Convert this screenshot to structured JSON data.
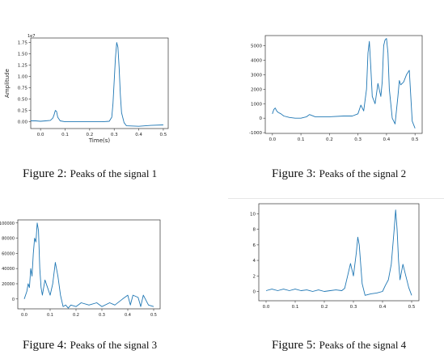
{
  "figures": [
    {
      "id": "fig2",
      "caption_label": "Figure 2:",
      "caption_text": "Peaks of the signal 1",
      "chart_data": {
        "type": "line",
        "title": "",
        "xlabel": "Time(s)",
        "ylabel": "Amplitude",
        "offset_text": "1e7",
        "xlim": [
          -0.04,
          0.52
        ],
        "ylim": [
          -0.15,
          1.85
        ],
        "xticks": [
          0.0,
          0.1,
          0.2,
          0.3,
          0.4,
          0.5
        ],
        "xtick_labels": [
          "0.0",
          "0.1",
          "0.2",
          "0.3",
          "0.4",
          "0.5"
        ],
        "yticks": [
          0.0,
          0.25,
          0.5,
          0.75,
          1.0,
          1.25,
          1.5,
          1.75
        ],
        "ytick_labels": [
          "0.00",
          "0.25",
          "0.50",
          "0.75",
          "1.00",
          "1.25",
          "1.50",
          "1.75"
        ],
        "series": [
          {
            "x": [
              -0.04,
              -0.02,
              0.0,
              0.02,
              0.04,
              0.05,
              0.055,
              0.06,
              0.065,
              0.07,
              0.08,
              0.1,
              0.15,
              0.2,
              0.25,
              0.28,
              0.29,
              0.295,
              0.3,
              0.305,
              0.31,
              0.315,
              0.32,
              0.325,
              0.33,
              0.34,
              0.35,
              0.4,
              0.45,
              0.5
            ],
            "y": [
              0.02,
              0.02,
              0.01,
              0.02,
              0.03,
              0.08,
              0.15,
              0.25,
              0.23,
              0.1,
              0.02,
              0.0,
              0.0,
              0.0,
              0.0,
              0.01,
              0.1,
              0.4,
              0.9,
              1.4,
              1.75,
              1.65,
              1.2,
              0.6,
              0.2,
              -0.02,
              -0.09,
              -0.1,
              -0.08,
              -0.07
            ]
          }
        ],
        "color": "#1f77b4"
      }
    },
    {
      "id": "fig3",
      "caption_label": "Figure 3:",
      "caption_text": "Peaks of the signal 2",
      "chart_data": {
        "type": "line",
        "title": "",
        "xlabel": "",
        "ylabel": "",
        "xlim": [
          -0.025,
          0.525
        ],
        "ylim": [
          -1050,
          5700
        ],
        "xticks": [
          0.0,
          0.1,
          0.2,
          0.3,
          0.4,
          0.5
        ],
        "xtick_labels": [
          "0.0",
          "0.1",
          "0.2",
          "0.3",
          "0.4",
          "0.5"
        ],
        "yticks": [
          -1000,
          0,
          1000,
          2000,
          3000,
          4000,
          5000
        ],
        "ytick_labels": [
          "-1000",
          "0",
          "1000",
          "2000",
          "3000",
          "4000",
          "5000"
        ],
        "series": [
          {
            "x": [
              0.0,
              0.005,
              0.01,
              0.015,
              0.02,
              0.03,
              0.04,
              0.06,
              0.08,
              0.1,
              0.12,
              0.13,
              0.15,
              0.2,
              0.25,
              0.28,
              0.3,
              0.31,
              0.32,
              0.33,
              0.335,
              0.34,
              0.345,
              0.35,
              0.36,
              0.37,
              0.38,
              0.385,
              0.39,
              0.395,
              0.4,
              0.405,
              0.41,
              0.42,
              0.43,
              0.44,
              0.445,
              0.45,
              0.46,
              0.47,
              0.48,
              0.49,
              0.5
            ],
            "y": [
              300,
              600,
              700,
              500,
              400,
              300,
              150,
              50,
              0,
              0,
              100,
              250,
              100,
              100,
              150,
              150,
              300,
              900,
              500,
              2000,
              4500,
              5300,
              3500,
              1500,
              1000,
              2400,
              1500,
              2500,
              5000,
              5400,
              5500,
              4500,
              2000,
              0,
              -400,
              1500,
              2600,
              2300,
              2500,
              3000,
              3300,
              -200,
              -700
            ]
          }
        ],
        "color": "#1f77b4"
      }
    },
    {
      "id": "fig4",
      "caption_label": "Figure 4:",
      "caption_text": "Peaks of the signal 3",
      "chart_data": {
        "type": "line",
        "title": "",
        "xlabel": "",
        "ylabel": "",
        "xlim": [
          -0.025,
          0.525
        ],
        "ylim": [
          -13000,
          104000
        ],
        "xticks": [
          0.0,
          0.1,
          0.2,
          0.3,
          0.4,
          0.5
        ],
        "xtick_labels": [
          "0.0",
          "0.1",
          "0.2",
          "0.3",
          "0.4",
          "0.5"
        ],
        "yticks": [
          0,
          20000,
          40000,
          60000,
          80000,
          100000
        ],
        "ytick_labels": [
          "0",
          "20000",
          "40000",
          "60000",
          "80000",
          "100000"
        ],
        "series": [
          {
            "x": [
              0.0,
              0.01,
              0.015,
              0.02,
              0.025,
              0.03,
              0.035,
              0.04,
              0.045,
              0.05,
              0.055,
              0.06,
              0.065,
              0.07,
              0.08,
              0.09,
              0.1,
              0.11,
              0.12,
              0.13,
              0.14,
              0.15,
              0.16,
              0.17,
              0.18,
              0.2,
              0.22,
              0.25,
              0.28,
              0.3,
              0.33,
              0.35,
              0.38,
              0.4,
              0.41,
              0.42,
              0.44,
              0.45,
              0.46,
              0.48,
              0.5
            ],
            "y": [
              0,
              10000,
              20000,
              15000,
              40000,
              30000,
              60000,
              80000,
              75000,
              100000,
              90000,
              40000,
              15000,
              5000,
              25000,
              15000,
              5000,
              20000,
              48000,
              30000,
              5000,
              -10000,
              -8000,
              -12000,
              -8000,
              -10000,
              -5000,
              -8000,
              -5000,
              -10000,
              -5000,
              -8000,
              0,
              5000,
              -8000,
              5000,
              2000,
              -10000,
              5000,
              -8000,
              -10000
            ]
          }
        ],
        "color": "#1f77b4"
      }
    },
    {
      "id": "fig5",
      "caption_label": "Figure 5:",
      "caption_text": "Peaks of the signal 4",
      "chart_data": {
        "type": "line",
        "title": "",
        "xlabel": "",
        "ylabel": "",
        "xlim": [
          -0.025,
          0.525
        ],
        "ylim": [
          -1.2,
          11.3
        ],
        "xticks": [
          0.0,
          0.1,
          0.2,
          0.3,
          0.4,
          0.5
        ],
        "xtick_labels": [
          "0.0",
          "0.1",
          "0.2",
          "0.3",
          "0.4",
          "0.5"
        ],
        "yticks": [
          0,
          2,
          4,
          6,
          8,
          10
        ],
        "ytick_labels": [
          "0",
          "2",
          "4",
          "6",
          "8",
          "10"
        ],
        "series": [
          {
            "x": [
              0.0,
              0.02,
              0.04,
              0.06,
              0.08,
              0.1,
              0.12,
              0.14,
              0.16,
              0.18,
              0.2,
              0.22,
              0.24,
              0.26,
              0.27,
              0.28,
              0.29,
              0.3,
              0.31,
              0.315,
              0.32,
              0.325,
              0.33,
              0.34,
              0.36,
              0.38,
              0.4,
              0.41,
              0.42,
              0.43,
              0.44,
              0.445,
              0.45,
              0.455,
              0.46,
              0.47,
              0.48,
              0.49,
              0.5
            ],
            "y": [
              0.1,
              0.3,
              0.1,
              0.3,
              0.1,
              0.3,
              0.1,
              0.2,
              0.0,
              0.2,
              0.0,
              0.1,
              0.2,
              0.1,
              0.4,
              2.0,
              3.6,
              2.0,
              5.0,
              7.0,
              6.0,
              3.5,
              1.0,
              -0.5,
              -0.3,
              -0.2,
              0.0,
              0.8,
              1.5,
              3.5,
              8.0,
              10.5,
              8.0,
              4.0,
              1.5,
              3.5,
              2.0,
              0.5,
              -0.5
            ]
          }
        ],
        "color": "#1f77b4"
      }
    }
  ]
}
